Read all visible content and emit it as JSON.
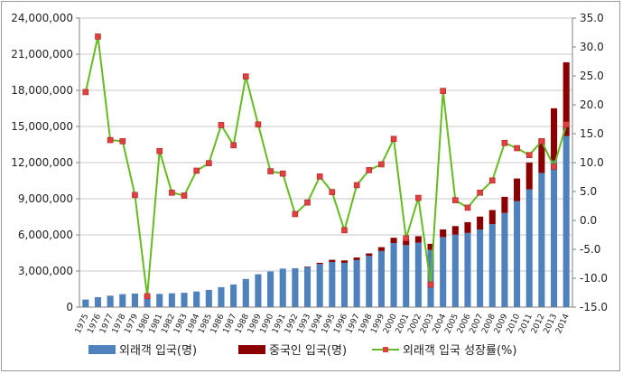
{
  "chart_data": {
    "type": "bar+line",
    "categories": [
      "1975",
      "1976",
      "1977",
      "1978",
      "1979",
      "1980",
      "1981",
      "1982",
      "1983",
      "1984",
      "1985",
      "1986",
      "1987",
      "1988",
      "1989",
      "1990",
      "1991",
      "1992",
      "1993",
      "1994",
      "1995",
      "1996",
      "1997",
      "1998",
      "1999",
      "2000",
      "2001",
      "2002",
      "2003",
      "2004",
      "2005",
      "2006",
      "2007",
      "2008",
      "2009",
      "2010",
      "2011",
      "2012",
      "2013",
      "2014"
    ],
    "series": [
      {
        "name": "외래객 입국(명)",
        "kind": "bar",
        "axis": "left",
        "color": "#4f81bd",
        "values": [
          630000,
          830000,
          950000,
          1080000,
          1130000,
          980000,
          1100000,
          1150000,
          1190000,
          1300000,
          1430000,
          1660000,
          1880000,
          2340000,
          2730000,
          2960000,
          3200000,
          3230000,
          3330000,
          3580000,
          3750000,
          3680000,
          3910000,
          4250000,
          4660000,
          5320000,
          5150000,
          5350000,
          4750000,
          5820000,
          6020000,
          6160000,
          6450000,
          6890000,
          7820000,
          8800000,
          9790000,
          11140000,
          12180000,
          14200000
        ]
      },
      {
        "name": "중국인 입국(명)",
        "kind": "bar-stacked",
        "axis": "left",
        "color": "#8b0000",
        "values": [
          0,
          0,
          0,
          0,
          0,
          0,
          0,
          0,
          0,
          0,
          0,
          0,
          0,
          0,
          0,
          0,
          0,
          0,
          40000,
          100000,
          180000,
          200000,
          210000,
          210000,
          320000,
          440000,
          480000,
          540000,
          510000,
          630000,
          710000,
          900000,
          1070000,
          1170000,
          1340000,
          1880000,
          2220000,
          2840000,
          4330000,
          6130000
        ]
      },
      {
        "name": "외래객 입국 성장률(%)",
        "kind": "line",
        "axis": "right",
        "color": "#66bb22",
        "marker_color": "#e04040",
        "values": [
          22.2,
          31.8,
          13.9,
          13.7,
          4.4,
          -13.1,
          12.0,
          4.8,
          4.3,
          8.6,
          9.9,
          16.5,
          13.0,
          24.9,
          16.6,
          8.5,
          8.1,
          1.1,
          3.1,
          7.6,
          4.9,
          -1.7,
          6.1,
          8.7,
          9.7,
          14.1,
          -3.1,
          3.9,
          -11.1,
          22.4,
          3.5,
          2.2,
          4.8,
          6.9,
          13.4,
          12.5,
          11.3,
          13.7,
          9.3,
          16.6
        ]
      }
    ],
    "y_left": {
      "min": 0,
      "max": 24000000,
      "step": 3000000,
      "labels": [
        "0",
        "3,000,000",
        "6,000,000",
        "9,000,000",
        "12,000,000",
        "15,000,000",
        "18,000,000",
        "21,000,000",
        "24,000,000"
      ]
    },
    "y_right": {
      "min": -15,
      "max": 35,
      "step": 5,
      "labels": [
        "-15.0",
        "-10.0",
        "-5.0",
        "0.0",
        "5.0",
        "10.0",
        "15.0",
        "20.0",
        "25.0",
        "30.0",
        "35.0"
      ]
    },
    "grid": true,
    "legend_position": "bottom"
  },
  "legend": [
    {
      "label": "외래객 입국(명)",
      "kind": "bar",
      "color": "#4f81bd"
    },
    {
      "label": "중국인 입국(명)",
      "kind": "bar",
      "color": "#8b0000"
    },
    {
      "label": "외래객 입국 성장률(%)",
      "kind": "line",
      "color": "#66bb22"
    }
  ]
}
